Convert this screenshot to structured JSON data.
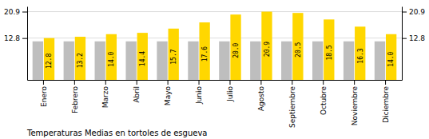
{
  "chart_data": {
    "type": "bar",
    "title": "Temperaturas Medias en tortoles de esgueva",
    "categories": [
      "Enero",
      "Febrero",
      "Marzo",
      "Abril",
      "Mayo",
      "Junio",
      "Julio",
      "Agosto",
      "Septiembre",
      "Octubre",
      "Noviembre",
      "Diciembre"
    ],
    "series": [
      {
        "color": "#BEBEBE",
        "values": [
          11.8,
          11.8,
          11.8,
          11.8,
          11.8,
          11.8,
          11.8,
          11.8,
          11.8,
          11.8,
          11.8,
          11.8
        ]
      },
      {
        "color": "#FFD700",
        "values": [
          12.8,
          13.2,
          14.0,
          14.4,
          15.7,
          17.6,
          20.0,
          20.9,
          20.5,
          18.5,
          16.3,
          14.0
        ],
        "value_labels": [
          "12.8",
          "13.2",
          "14.0",
          "14.4",
          "15.7",
          "17.6",
          "20.0",
          "20.9",
          "20.5",
          "18.5",
          "16.3",
          "14.0"
        ],
        "data_labels": true
      }
    ],
    "ylim": [
      0,
      22.5
    ],
    "yticks": [
      12.8,
      20.9
    ],
    "y2lim": [
      0,
      22.5
    ],
    "y2ticks": [
      12.8,
      20.9
    ],
    "grid": true
  }
}
